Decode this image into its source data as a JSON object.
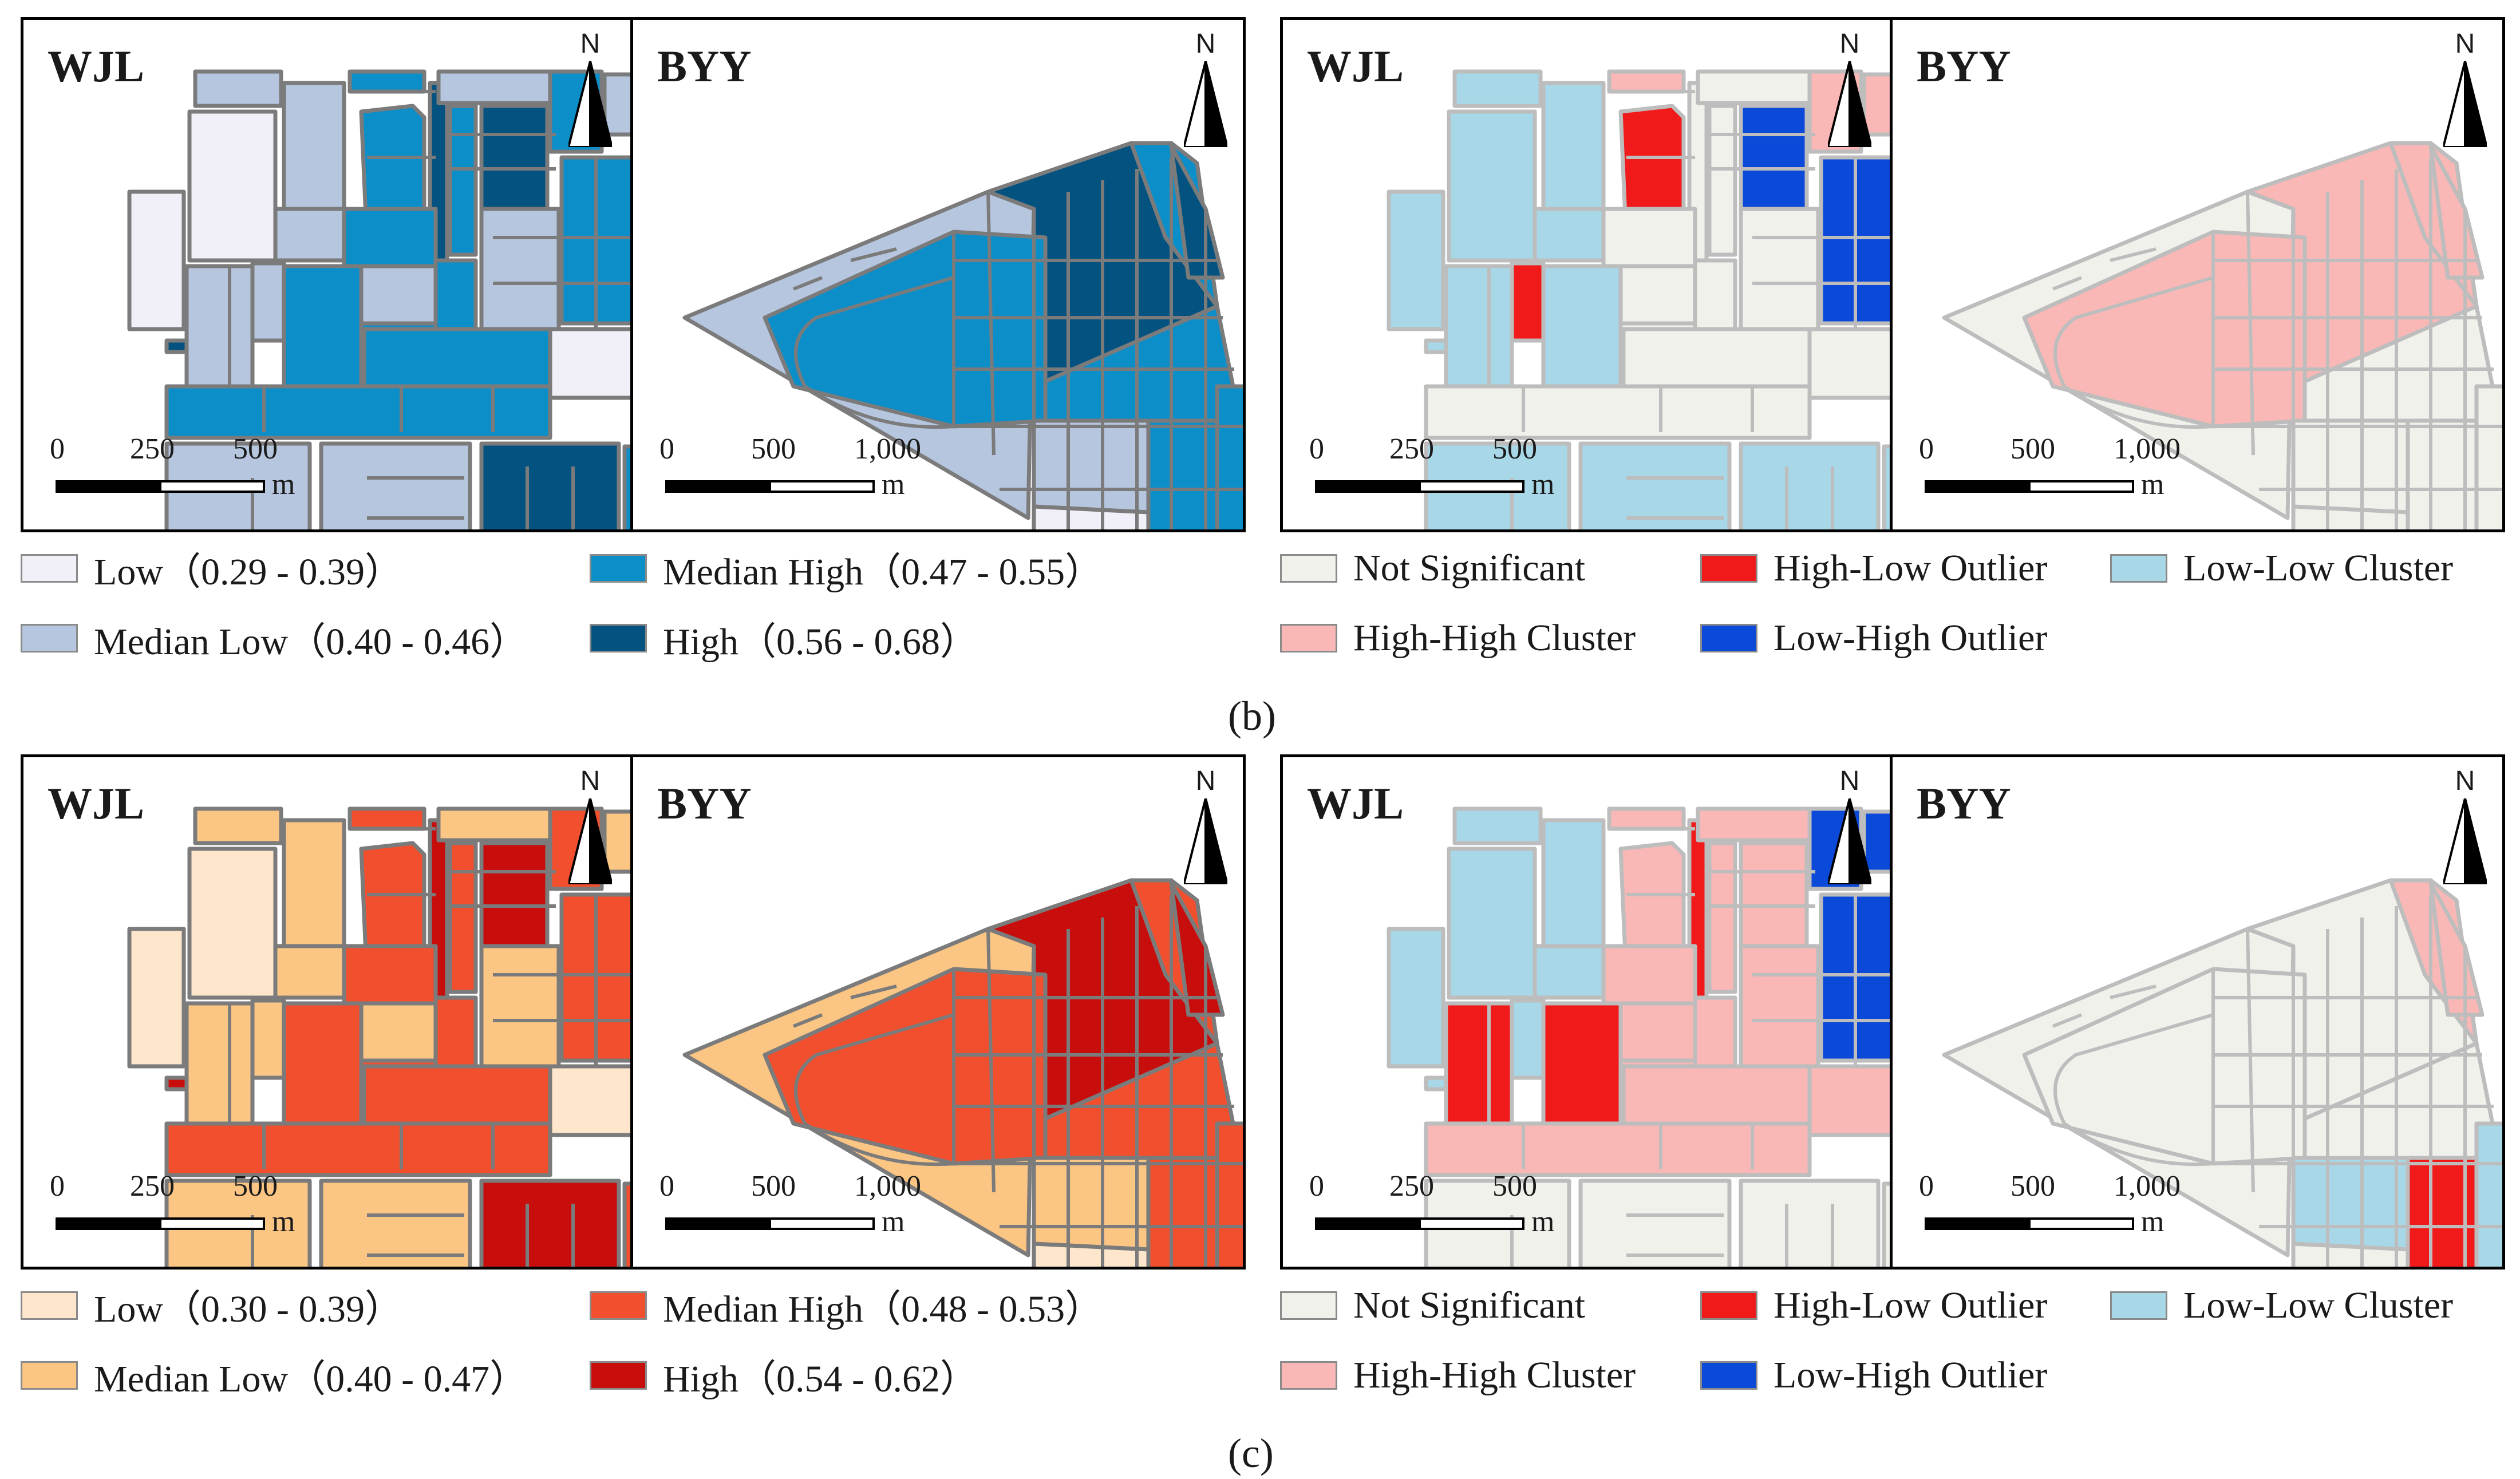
{
  "rows": [
    {
      "caption": "(b)",
      "caption_letter": "b",
      "value_panel": {
        "sites": [
          {
            "label": "WJL"
          },
          {
            "label": "BYY"
          }
        ],
        "colors": {
          "low": "#f1eff8",
          "median_low": "#b6c6df",
          "median_high": "#0c8ec9",
          "high": "#04527f"
        },
        "legend": [
          {
            "label": "Low（0.29 - 0.39）",
            "color": "#f1eff8"
          },
          {
            "label": "Median High（0.47 - 0.55）",
            "color": "#0c8ec9"
          },
          {
            "label": "Median Low（0.40 - 0.46）",
            "color": "#b6c6df"
          },
          {
            "label": "High（0.56 - 0.68）",
            "color": "#04527f"
          }
        ]
      },
      "lisa_panel": {
        "sites": [
          {
            "label": "WJL"
          },
          {
            "label": "BYY"
          }
        ],
        "legend": [
          {
            "label": "Not Significant",
            "color": "#f1f1ec"
          },
          {
            "label": "High-Low Outlier",
            "color": "#f01a1a"
          },
          {
            "label": "Low-Low Cluster",
            "color": "#a8d7e8"
          },
          {
            "label": "High-High Cluster",
            "color": "#f9b8b6"
          },
          {
            "label": "Low-High Outlier",
            "color": "#0b49d9"
          }
        ]
      }
    },
    {
      "caption": "(c)",
      "caption_letter": "c",
      "value_panel": {
        "sites": [
          {
            "label": "WJL"
          },
          {
            "label": "BYY"
          }
        ],
        "colors": {
          "low": "#fde6cc",
          "median_low": "#fbc584",
          "median_high": "#f24f2e",
          "high": "#c80d0d"
        },
        "legend": [
          {
            "label": "Low（0.30 - 0.39）",
            "color": "#fde6cc"
          },
          {
            "label": "Median High（0.48 - 0.53）",
            "color": "#f24f2e"
          },
          {
            "label": "Median Low（0.40 - 0.47）",
            "color": "#fbc584"
          },
          {
            "label": "High（0.54 - 0.62）",
            "color": "#c80d0d"
          }
        ]
      },
      "lisa_panel": {
        "sites": [
          {
            "label": "WJL"
          },
          {
            "label": "BYY"
          }
        ],
        "legend": [
          {
            "label": "Not Significant",
            "color": "#f1f1ec"
          },
          {
            "label": "High-Low Outlier",
            "color": "#f01a1a"
          },
          {
            "label": "Low-Low Cluster",
            "color": "#a8d7e8"
          },
          {
            "label": "High-High Cluster",
            "color": "#f9b8b6"
          },
          {
            "label": "Low-High Outlier",
            "color": "#0b49d9"
          }
        ]
      }
    }
  ],
  "scale_bars": {
    "wjl": {
      "ticks": [
        "0",
        "250",
        "500"
      ],
      "unit": "m"
    },
    "byy": {
      "ticks": [
        "0",
        "500",
        "1,000"
      ],
      "unit": "m"
    }
  },
  "north_label": "N"
}
